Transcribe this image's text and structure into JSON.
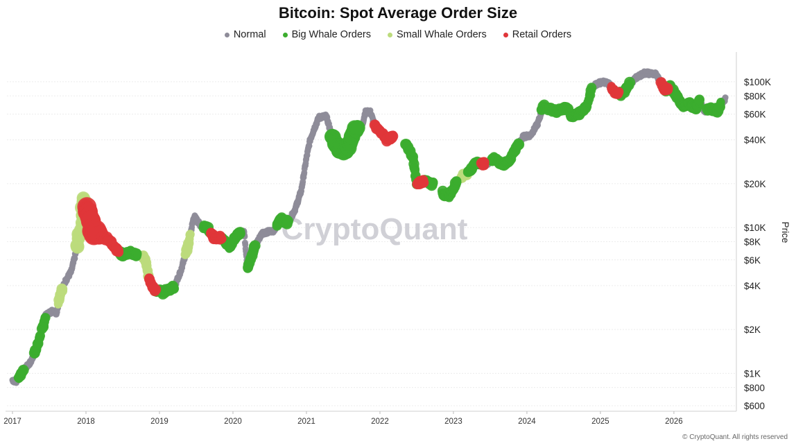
{
  "chart_data": {
    "type": "scatter",
    "title": "Bitcoin: Spot Average Order Size",
    "ylabel": "Price",
    "yscale": "log",
    "ylim": [
      550,
      160000
    ],
    "xlim": [
      2017.0,
      2026.85
    ],
    "x_ticks": [
      "2017",
      "2018",
      "2019",
      "2020",
      "2021",
      "2022",
      "2023",
      "2024",
      "2025",
      "2026"
    ],
    "y_ticks": [
      {
        "label": "$100K",
        "value": 100000
      },
      {
        "label": "$80K",
        "value": 80000
      },
      {
        "label": "$60K",
        "value": 60000
      },
      {
        "label": "$40K",
        "value": 40000
      },
      {
        "label": "$20K",
        "value": 20000
      },
      {
        "label": "$10K",
        "value": 10000
      },
      {
        "label": "$8K",
        "value": 8000
      },
      {
        "label": "$6K",
        "value": 6000
      },
      {
        "label": "$4K",
        "value": 4000
      },
      {
        "label": "$2K",
        "value": 2000
      },
      {
        "label": "$1K",
        "value": 1000
      },
      {
        "label": "$800",
        "value": 800
      },
      {
        "label": "$600",
        "value": 600
      }
    ],
    "grid": true,
    "legend_position": "top",
    "watermark": "CryptoQuant",
    "copyright": "© CryptoQuant. All rights reserved",
    "colors": {
      "Normal": "#8e8c99",
      "Big Whale Orders": "#3cad2f",
      "Small Whale Orders": "#bcdb7c",
      "Retail Orders": "#e0363a"
    },
    "price_path": [
      [
        2017.0,
        900
      ],
      [
        2017.05,
        880
      ],
      [
        2017.15,
        1050
      ],
      [
        2017.25,
        1200
      ],
      [
        2017.35,
        1600
      ],
      [
        2017.45,
        2500
      ],
      [
        2017.55,
        2700
      ],
      [
        2017.6,
        2600
      ],
      [
        2017.65,
        3500
      ],
      [
        2017.72,
        4300
      ],
      [
        2017.8,
        5000
      ],
      [
        2017.87,
        7000
      ],
      [
        2017.93,
        10000
      ],
      [
        2017.96,
        16000
      ],
      [
        2018.0,
        14000
      ],
      [
        2018.05,
        12000
      ],
      [
        2018.1,
        9000
      ],
      [
        2018.15,
        9500
      ],
      [
        2018.22,
        8500
      ],
      [
        2018.3,
        8500
      ],
      [
        2018.4,
        7200
      ],
      [
        2018.5,
        6500
      ],
      [
        2018.6,
        6800
      ],
      [
        2018.7,
        6500
      ],
      [
        2018.8,
        6300
      ],
      [
        2018.87,
        4200
      ],
      [
        2018.95,
        3700
      ],
      [
        2019.05,
        3600
      ],
      [
        2019.2,
        3900
      ],
      [
        2019.3,
        5200
      ],
      [
        2019.4,
        8000
      ],
      [
        2019.47,
        12000
      ],
      [
        2019.55,
        10500
      ],
      [
        2019.65,
        10000
      ],
      [
        2019.75,
        8500
      ],
      [
        2019.85,
        8500
      ],
      [
        2019.95,
        7300
      ],
      [
        2020.05,
        9000
      ],
      [
        2020.15,
        9500
      ],
      [
        2020.2,
        5300
      ],
      [
        2020.3,
        7500
      ],
      [
        2020.4,
        9200
      ],
      [
        2020.55,
        9500
      ],
      [
        2020.65,
        11500
      ],
      [
        2020.75,
        10800
      ],
      [
        2020.85,
        13500
      ],
      [
        2020.93,
        18000
      ],
      [
        2021.0,
        30000
      ],
      [
        2021.05,
        40000
      ],
      [
        2021.1,
        47000
      ],
      [
        2021.17,
        57000
      ],
      [
        2021.27,
        58000
      ],
      [
        2021.35,
        42000
      ],
      [
        2021.45,
        34000
      ],
      [
        2021.55,
        33000
      ],
      [
        2021.65,
        47000
      ],
      [
        2021.75,
        48000
      ],
      [
        2021.8,
        62000
      ],
      [
        2021.87,
        62000
      ],
      [
        2021.93,
        50000
      ],
      [
        2022.0,
        46000
      ],
      [
        2022.1,
        40000
      ],
      [
        2022.25,
        44000
      ],
      [
        2022.35,
        38000
      ],
      [
        2022.45,
        30000
      ],
      [
        2022.5,
        20000
      ],
      [
        2022.6,
        21000
      ],
      [
        2022.7,
        20000
      ],
      [
        2022.8,
        19500
      ],
      [
        2022.87,
        17000
      ],
      [
        2022.95,
        16500
      ],
      [
        2023.05,
        21000
      ],
      [
        2023.15,
        23000
      ],
      [
        2023.22,
        24000
      ],
      [
        2023.3,
        28000
      ],
      [
        2023.45,
        27000
      ],
      [
        2023.55,
        30000
      ],
      [
        2023.65,
        27000
      ],
      [
        2023.75,
        28000
      ],
      [
        2023.85,
        35000
      ],
      [
        2023.95,
        42000
      ],
      [
        2024.05,
        43000
      ],
      [
        2024.15,
        52000
      ],
      [
        2024.22,
        68000
      ],
      [
        2024.3,
        65000
      ],
      [
        2024.4,
        63000
      ],
      [
        2024.55,
        66000
      ],
      [
        2024.6,
        58000
      ],
      [
        2024.7,
        60000
      ],
      [
        2024.82,
        69000
      ],
      [
        2024.88,
        90000
      ],
      [
        2024.95,
        97000
      ],
      [
        2025.05,
        100000
      ],
      [
        2025.12,
        96000
      ],
      [
        2025.2,
        85000
      ],
      [
        2025.3,
        82000
      ],
      [
        2025.38,
        95000
      ],
      [
        2025.5,
        108000
      ],
      [
        2025.6,
        115000
      ],
      [
        2025.75,
        113000
      ],
      [
        2025.82,
        100000
      ],
      [
        2025.88,
        88000
      ],
      [
        2025.95,
        92000
      ],
      [
        2026.05,
        78000
      ],
      [
        2026.12,
        68000
      ],
      [
        2026.2,
        71000
      ],
      [
        2026.3,
        66000
      ],
      [
        2026.35,
        74000
      ],
      [
        2026.42,
        62000
      ],
      [
        2026.5,
        66000
      ],
      [
        2026.6,
        63000
      ],
      [
        2026.64,
        71000
      ],
      [
        2026.7,
        76000
      ]
    ],
    "series": [
      {
        "name": "Normal",
        "ranges": [
          [
            2017.0,
            2017.08
          ],
          [
            2017.15,
            2017.62
          ],
          [
            2017.68,
            2017.88
          ],
          [
            2018.7,
            2018.83
          ],
          [
            2019.2,
            2019.6
          ],
          [
            2019.75,
            2019.85
          ],
          [
            2020.1,
            2020.2
          ],
          [
            2020.3,
            2020.6
          ],
          [
            2020.75,
            2021.35
          ],
          [
            2021.7,
            2021.93
          ],
          [
            2023.4,
            2023.52
          ],
          [
            2023.9,
            2024.2
          ],
          [
            2024.88,
            2025.25
          ],
          [
            2025.4,
            2025.88
          ],
          [
            2026.35,
            2026.45
          ],
          [
            2026.64,
            2026.7
          ]
        ]
      },
      {
        "name": "Big Whale Orders",
        "ranges": [
          [
            2017.08,
            2017.15
          ],
          [
            2017.3,
            2017.38
          ],
          [
            2017.4,
            2017.45
          ],
          [
            2018.45,
            2018.7
          ],
          [
            2018.95,
            2019.2
          ],
          [
            2019.6,
            2019.7
          ],
          [
            2019.85,
            2020.1
          ],
          [
            2020.2,
            2020.3
          ],
          [
            2020.6,
            2020.75
          ],
          [
            2021.35,
            2021.7
          ],
          [
            2022.35,
            2022.5
          ],
          [
            2022.6,
            2022.73
          ],
          [
            2022.85,
            2023.05
          ],
          [
            2023.2,
            2023.4
          ],
          [
            2023.52,
            2023.9
          ],
          [
            2024.2,
            2024.88
          ],
          [
            2025.25,
            2025.4
          ],
          [
            2025.88,
            2026.35
          ],
          [
            2026.45,
            2026.64
          ]
        ]
      },
      {
        "name": "Small Whale Orders",
        "ranges": [
          [
            2017.62,
            2017.68
          ],
          [
            2017.88,
            2018.0
          ],
          [
            2018.78,
            2018.86
          ],
          [
            2019.35,
            2019.42
          ],
          [
            2023.1,
            2023.18
          ]
        ]
      },
      {
        "name": "Retail Orders",
        "ranges": [
          [
            2018.0,
            2018.45
          ],
          [
            2018.86,
            2018.95
          ],
          [
            2019.7,
            2019.85
          ],
          [
            2021.93,
            2022.18
          ],
          [
            2022.5,
            2022.6
          ],
          [
            2023.38,
            2023.43
          ],
          [
            2025.15,
            2025.25
          ],
          [
            2025.82,
            2025.92
          ]
        ]
      }
    ]
  }
}
